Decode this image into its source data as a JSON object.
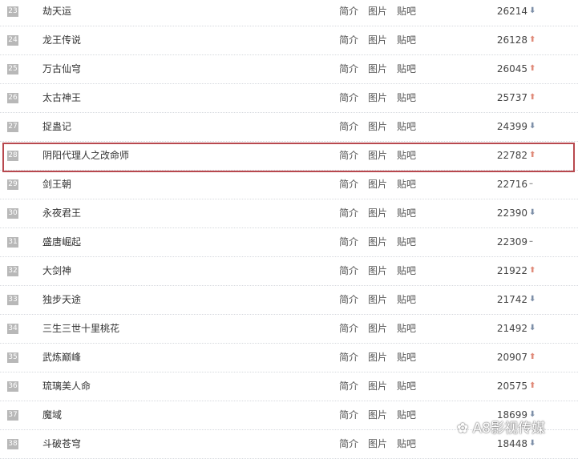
{
  "links": {
    "intro": "简介",
    "images": "图片",
    "tieba": "贴吧"
  },
  "rows": [
    {
      "rank": "23",
      "name": "劫天运",
      "score": "26214",
      "trend": "down"
    },
    {
      "rank": "24",
      "name": "龙王传说",
      "score": "26128",
      "trend": "up"
    },
    {
      "rank": "25",
      "name": "万古仙穹",
      "score": "26045",
      "trend": "up"
    },
    {
      "rank": "26",
      "name": "太古神王",
      "score": "25737",
      "trend": "up"
    },
    {
      "rank": "27",
      "name": "捉蛊记",
      "score": "24399",
      "trend": "down"
    },
    {
      "rank": "28",
      "name": "阴阳代理人之改命师",
      "score": "22782",
      "trend": "up"
    },
    {
      "rank": "29",
      "name": "剑王朝",
      "score": "22716",
      "trend": "flat"
    },
    {
      "rank": "30",
      "name": "永夜君王",
      "score": "22390",
      "trend": "down"
    },
    {
      "rank": "31",
      "name": "盛唐崛起",
      "score": "22309",
      "trend": "flat"
    },
    {
      "rank": "32",
      "name": "大剑神",
      "score": "21922",
      "trend": "up"
    },
    {
      "rank": "33",
      "name": "独步天途",
      "score": "21742",
      "trend": "down"
    },
    {
      "rank": "34",
      "name": "三生三世十里桃花",
      "score": "21492",
      "trend": "down"
    },
    {
      "rank": "35",
      "name": "武炼巅峰",
      "score": "20907",
      "trend": "up"
    },
    {
      "rank": "36",
      "name": "琉璃美人命",
      "score": "20575",
      "trend": "up"
    },
    {
      "rank": "37",
      "name": "魔域",
      "score": "18699",
      "trend": "down"
    },
    {
      "rank": "38",
      "name": "斗破苍穹",
      "score": "18448",
      "trend": "down"
    }
  ],
  "highlighted_rank": "28",
  "watermark": "A8影视传媒",
  "colors": {
    "highlight": "#b8484e",
    "up": "#e08b7a",
    "down": "#7d8fa8"
  }
}
